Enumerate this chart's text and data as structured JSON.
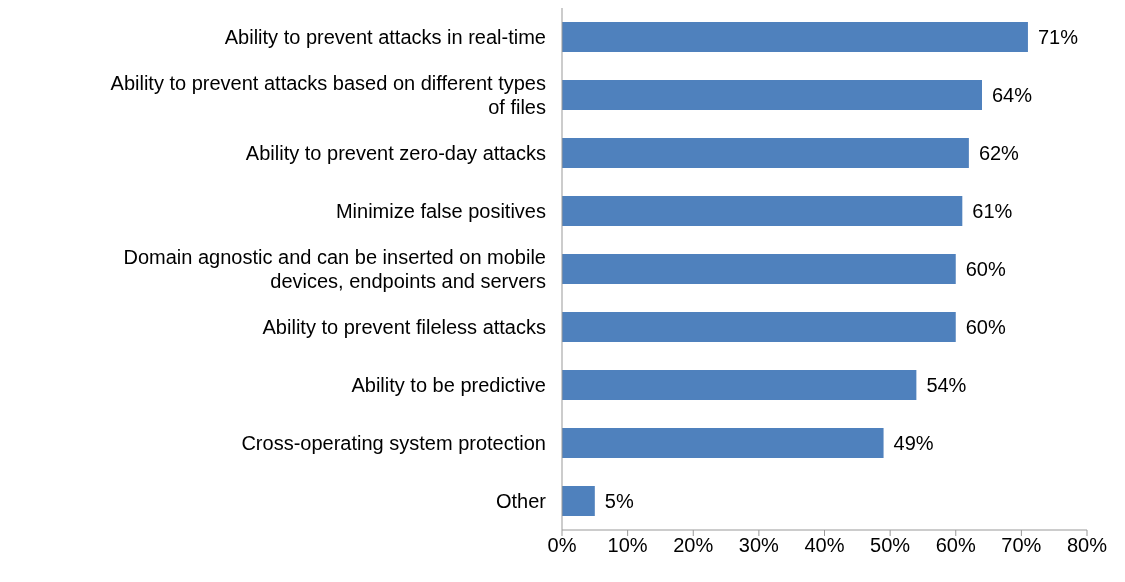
{
  "chart_data": {
    "type": "bar",
    "orientation": "horizontal",
    "categories": [
      "Ability to prevent attacks in real-time",
      "Ability to prevent attacks based on different types of files",
      "Ability to prevent zero-day attacks",
      "Minimize false positives",
      "Domain agnostic and can be inserted on mobile devices, endpoints and servers",
      "Ability to prevent fileless attacks",
      "Ability to be predictive",
      "Cross-operating system protection",
      "Other"
    ],
    "values": [
      71,
      64,
      62,
      61,
      60,
      60,
      54,
      49,
      5
    ],
    "value_labels": [
      "71%",
      "64%",
      "62%",
      "61%",
      "60%",
      "60%",
      "54%",
      "49%",
      "5%"
    ],
    "color": "#4f81bd",
    "xlim": [
      0,
      80
    ],
    "xticks": [
      {
        "value": 0,
        "label": "0%"
      },
      {
        "value": 10,
        "label": "10%"
      },
      {
        "value": 20,
        "label": "20%"
      },
      {
        "value": 30,
        "label": "30%"
      },
      {
        "value": 40,
        "label": "40%"
      },
      {
        "value": 50,
        "label": "50%"
      },
      {
        "value": 60,
        "label": "60%"
      },
      {
        "value": 70,
        "label": "70%"
      },
      {
        "value": 80,
        "label": "80%"
      }
    ],
    "grid": false,
    "legend": false
  }
}
